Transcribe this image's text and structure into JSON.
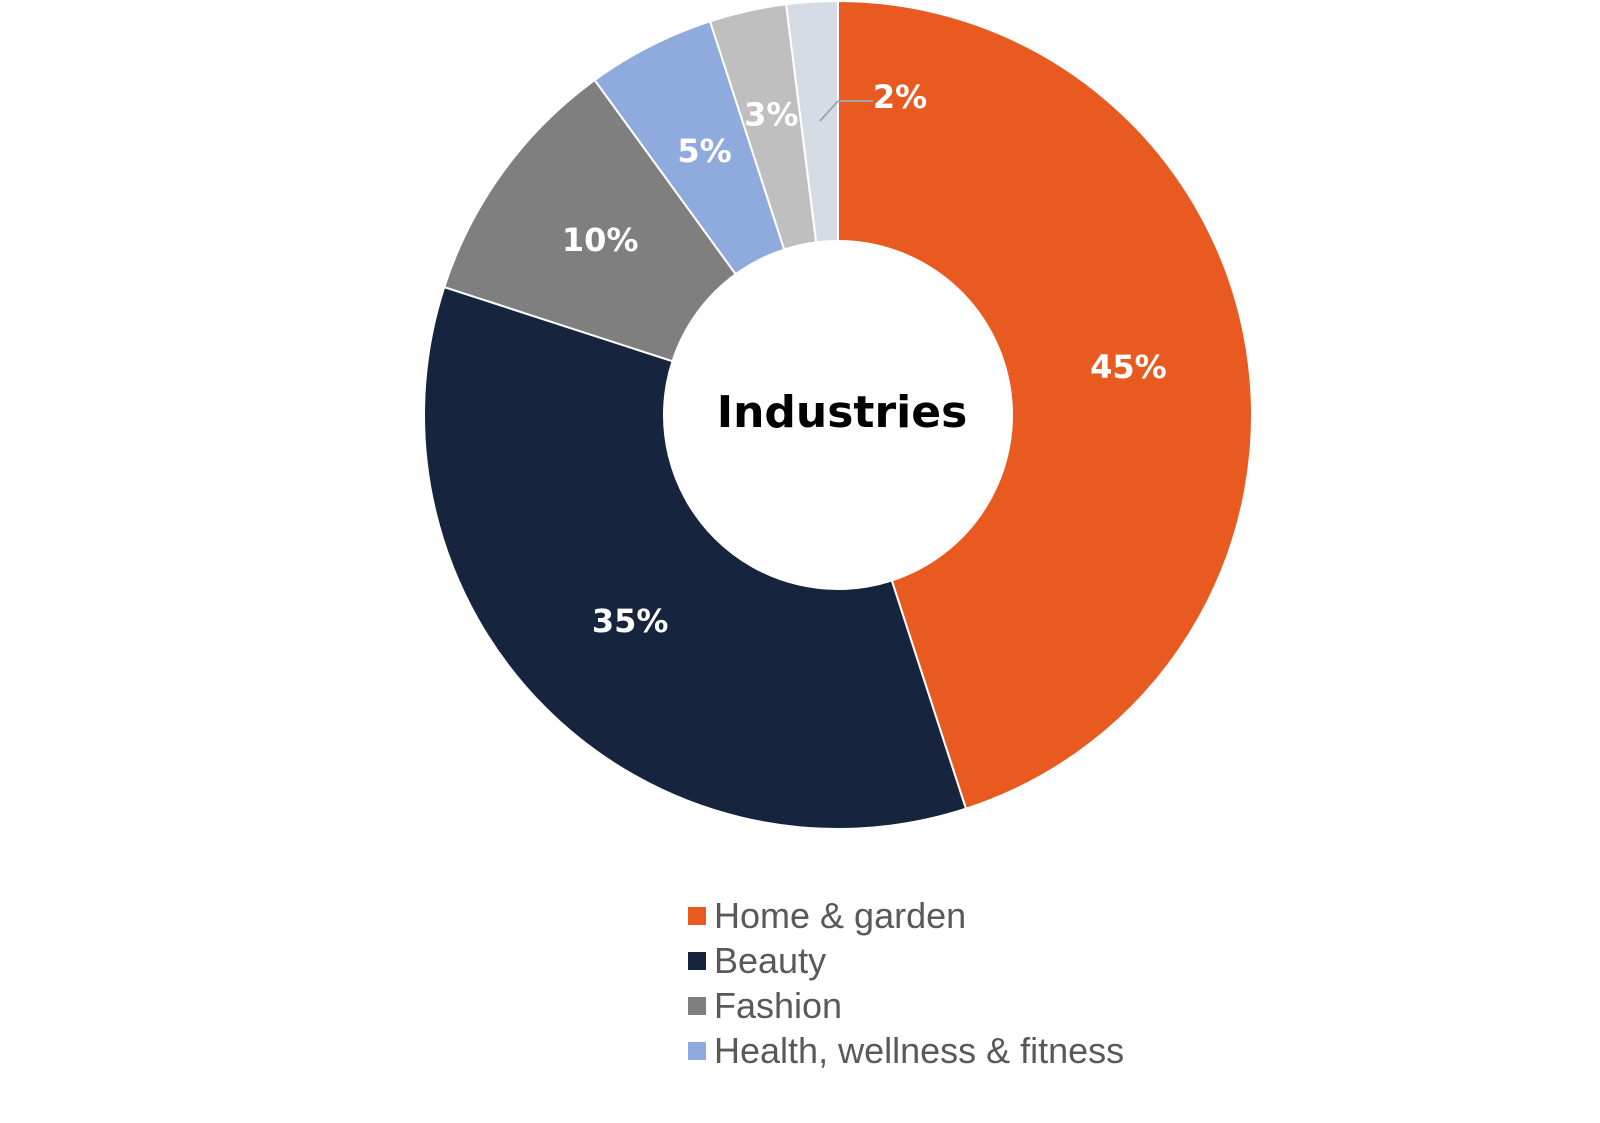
{
  "chart_data": {
    "type": "pie",
    "variant": "donut",
    "title": "Industries",
    "slices": [
      {
        "label": "Home & garden",
        "value": 45,
        "display": "45%",
        "color": "#E95A21"
      },
      {
        "label": "Beauty",
        "value": 35,
        "display": "35%",
        "color": "#17243D"
      },
      {
        "label": "Fashion",
        "value": 10,
        "display": "10%",
        "color": "#7F7F7F"
      },
      {
        "label": "Health, wellness & fitness",
        "value": 5,
        "display": "5%",
        "color": "#8FAADC"
      },
      {
        "label": "",
        "value": 3,
        "display": "3%",
        "color": "#BFBFBF"
      },
      {
        "label": "",
        "value": 2,
        "display": "2%",
        "color": "#D6DCE5"
      }
    ],
    "legend": {
      "position": "bottom",
      "entries": [
        "Home & garden",
        "Beauty",
        "Fashion",
        "Health, wellness & fitness"
      ]
    },
    "data_labels": "percent"
  }
}
